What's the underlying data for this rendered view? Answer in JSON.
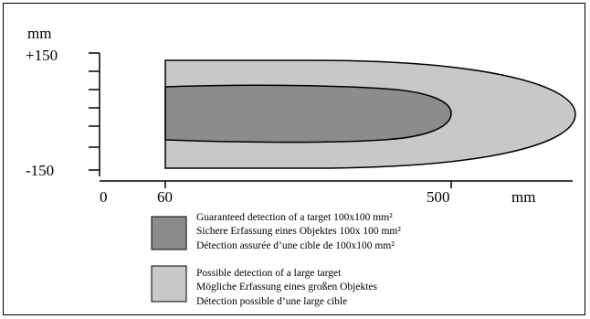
{
  "diagram": {
    "y_unit": "mm",
    "y_top_label": "+150",
    "y_bottom_label": "-150",
    "x_labels": [
      "0",
      "60",
      "500"
    ],
    "x_unit": "mm",
    "colors": {
      "outer_zone": "#c8c8c8",
      "inner_zone": "#8c8c8c",
      "stroke": "#000000"
    }
  },
  "legend": {
    "guaranteed": [
      "Guaranteed detection of a target 100x100 mm²",
      "Sichere Erfassung eines Objektes 100x 100 mm²",
      "Détection assurée d’une cible de 100x100 mm²"
    ],
    "possible": [
      "Possible detection of a large target",
      "Mögliche Erfassung eines  großen Objektes",
      "Détection possible d’une large cible"
    ]
  }
}
